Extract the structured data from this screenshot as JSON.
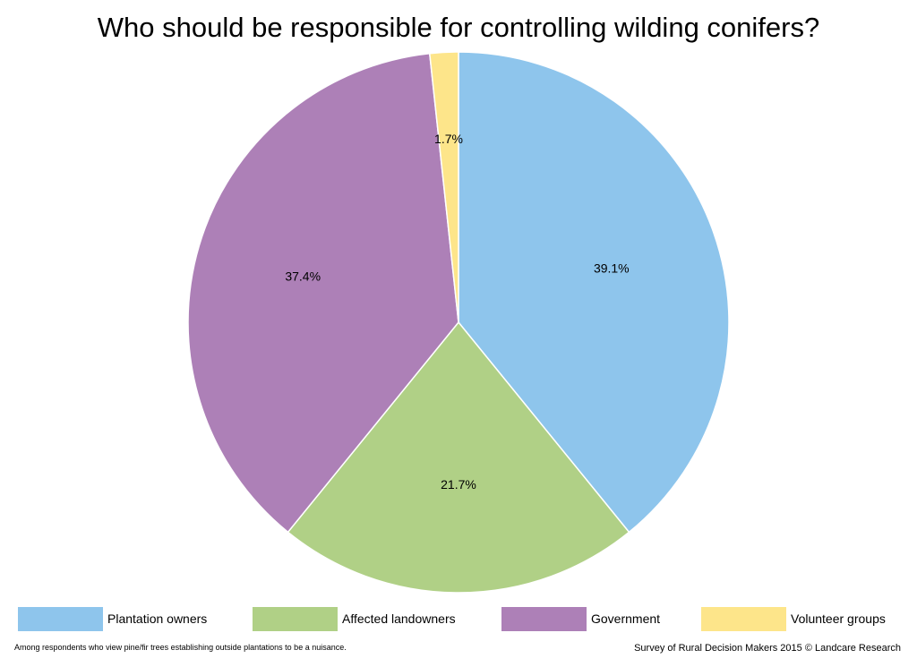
{
  "chart_data": {
    "type": "pie",
    "title": "Who should be responsible for controlling wilding conifers?",
    "slices": [
      {
        "label": "Plantation owners",
        "value": 39.1,
        "value_label": "39.1%",
        "color": "#8ec5ec"
      },
      {
        "label": "Affected landowners",
        "value": 21.7,
        "value_label": "21.7%",
        "color": "#b0d086"
      },
      {
        "label": "Government",
        "value": 37.4,
        "value_label": "37.4%",
        "color": "#ad80b7"
      },
      {
        "label": "Volunteer groups",
        "value": 1.7,
        "value_label": "1.7%",
        "color": "#fde58a"
      }
    ],
    "start_angle": "12 o'clock",
    "direction": "clockwise",
    "legend_position": "bottom"
  },
  "footnote": "Among respondents who view pine/fir trees establishing outside plantations to be a nuisance.",
  "credit": "Survey of Rural Decision Makers 2015 © Landcare Research"
}
